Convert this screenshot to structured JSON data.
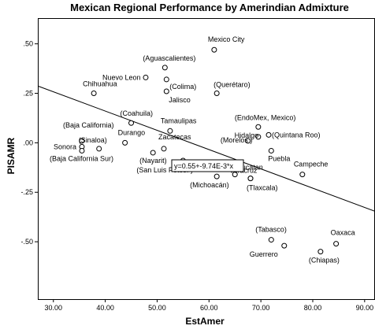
{
  "chart_data": {
    "type": "scatter",
    "title": "Mexican Regional Performance by Amerindian Admixture",
    "xlabel": "EstAmer",
    "ylabel": "PISAMR",
    "xlim": [
      27,
      92
    ],
    "ylim": [
      -0.79,
      0.63
    ],
    "xticks": [
      30,
      40,
      50,
      60,
      70,
      80,
      90
    ],
    "xtick_labels": [
      "30.00",
      "40.00",
      "50.00",
      "60.00",
      "70.00",
      "80.00",
      "90.00"
    ],
    "yticks": [
      0.5,
      0.25,
      0,
      -0.25,
      -0.5
    ],
    "ytick_labels": [
      ".50",
      ".25",
      ".00",
      "-.25",
      "-.50"
    ],
    "grid": false,
    "points": [
      {
        "label": "Mexico City",
        "x": 61.0,
        "y": 0.47
      },
      {
        "label": "(Aguascalientes)",
        "x": 51.5,
        "y": 0.38
      },
      {
        "label": "Nuevo Leon",
        "x": 47.8,
        "y": 0.33
      },
      {
        "label": "(Colima)",
        "x": 51.8,
        "y": 0.32
      },
      {
        "label": "Jalisco",
        "x": 51.8,
        "y": 0.26
      },
      {
        "label": "(Querétaro)",
        "x": 61.5,
        "y": 0.25
      },
      {
        "label": "Chihuahua",
        "x": 37.8,
        "y": 0.25
      },
      {
        "label": "(Coahuila)",
        "x": 45.0,
        "y": 0.1
      },
      {
        "label": "Tamaulipas",
        "x": 52.5,
        "y": 0.06
      },
      {
        "label": "(EndoMex, Mexico)",
        "x": 69.5,
        "y": 0.08
      },
      {
        "label": "(Morelos )",
        "x": 69.5,
        "y": 0.03
      },
      {
        "label": "(Quintana Roo)",
        "x": 71.5,
        "y": 0.04
      },
      {
        "label": "Hidalgo",
        "x": 67.5,
        "y": 0.01
      },
      {
        "label": "Puebla",
        "x": 72.0,
        "y": -0.04
      },
      {
        "label": "(Baja California)",
        "x": 35.5,
        "y": 0.01
      },
      {
        "label": "Durango",
        "x": 43.8,
        "y": 0.0
      },
      {
        "label": "Zacatecas",
        "x": 51.3,
        "y": -0.03
      },
      {
        "label": "(Sinaloa)",
        "x": 38.8,
        "y": -0.03
      },
      {
        "label": "Sonora",
        "x": 35.5,
        "y": -0.02
      },
      {
        "label": "(Baja California Sur)",
        "x": 35.5,
        "y": -0.04
      },
      {
        "label": "(Nayarit)",
        "x": 49.2,
        "y": -0.05
      },
      {
        "label": "(San Luis Potosí )",
        "x": 55.0,
        "y": -0.09
      },
      {
        "label": "Yucatan",
        "x": 65.0,
        "y": -0.16
      },
      {
        "label": "Veracruz",
        "x": 68.0,
        "y": -0.18
      },
      {
        "label": "(Michoacán)",
        "x": 61.5,
        "y": -0.17
      },
      {
        "label": "(Tlaxcala)",
        "x": 68.0,
        "y": -0.18
      },
      {
        "label": "Campeche",
        "x": 78.0,
        "y": -0.16
      },
      {
        "label": "(Tabasco)",
        "x": 72.0,
        "y": -0.49
      },
      {
        "label": "Guerrero",
        "x": 74.5,
        "y": -0.52
      },
      {
        "label": "Oaxaca",
        "x": 84.5,
        "y": -0.51
      },
      {
        "label": "(Chiapas)",
        "x": 81.5,
        "y": -0.55
      }
    ],
    "fit_line": {
      "intercept": 0.55,
      "slope": -0.00974,
      "equation": "y=0.55+-9.74E-3*x"
    }
  }
}
